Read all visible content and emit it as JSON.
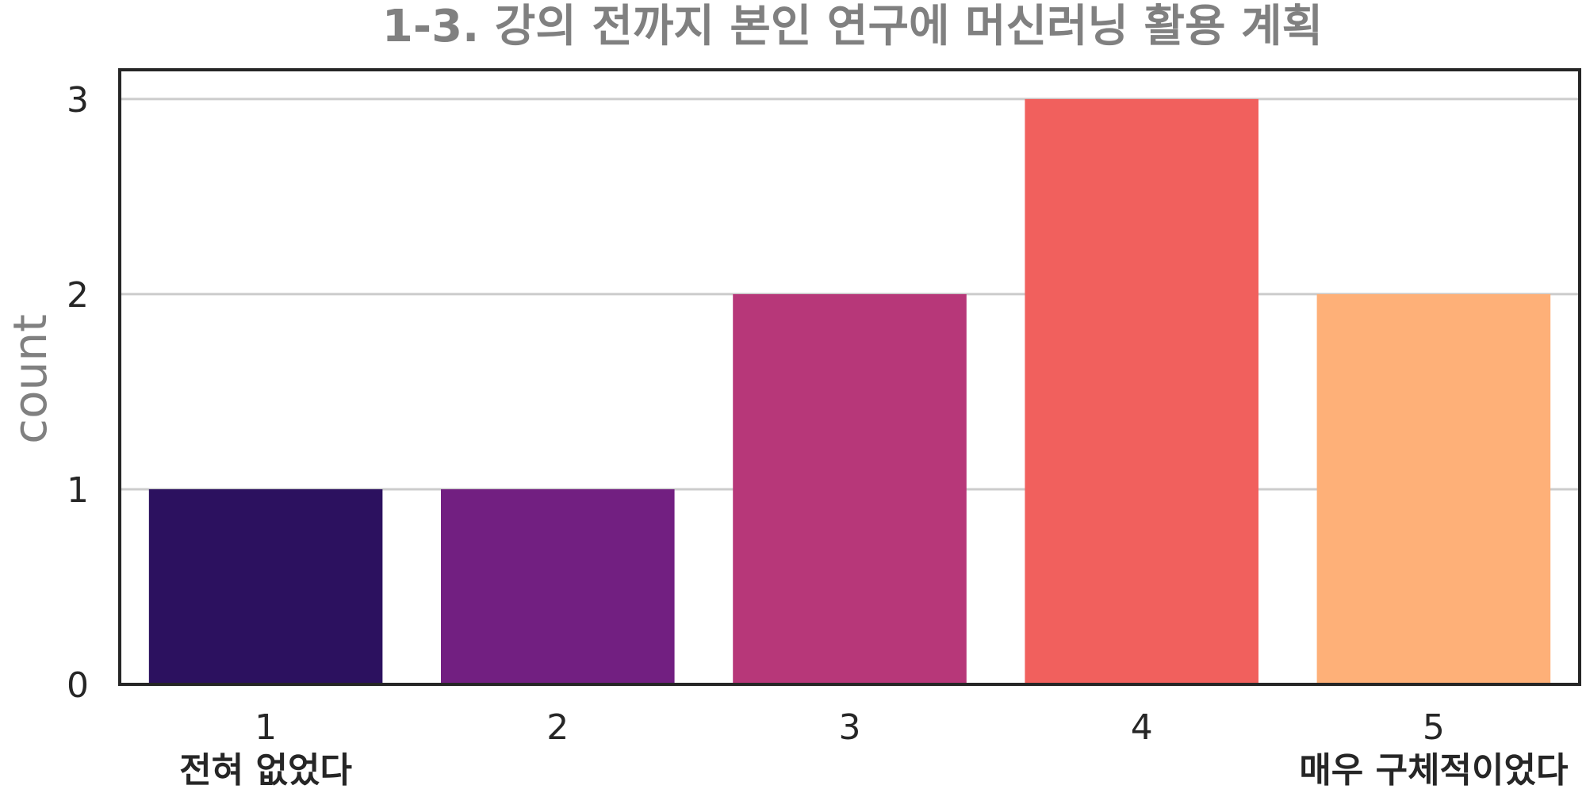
{
  "chart_data": {
    "type": "bar",
    "title": "1-3. 강의 전까지 본인 연구에 머신러닝 활용 계획",
    "xlabel": "",
    "ylabel": "count",
    "categories": [
      "1",
      "2",
      "3",
      "4",
      "5"
    ],
    "category_sublabels": [
      "전혀 없었다",
      "",
      "",
      "",
      "매우 구체적이었다"
    ],
    "values": [
      1,
      1,
      2,
      3,
      2
    ],
    "colors": [
      "#2c115f",
      "#721f81",
      "#b73779",
      "#f1605d",
      "#feb078"
    ],
    "ylim": [
      0,
      3.15
    ],
    "yticks": [
      0,
      1,
      2,
      3
    ],
    "grid": true,
    "legend": "none"
  }
}
